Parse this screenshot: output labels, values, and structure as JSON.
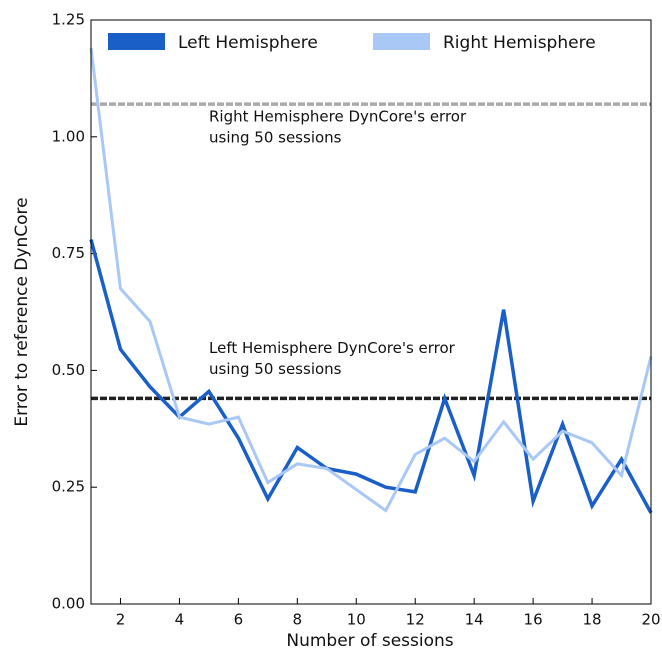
{
  "chart_data": {
    "type": "line",
    "xlabel": "Number of sessions",
    "ylabel": "Error to reference DynCore",
    "x": [
      1,
      2,
      3,
      4,
      5,
      6,
      7,
      8,
      9,
      10,
      11,
      12,
      13,
      14,
      15,
      16,
      17,
      18,
      19,
      20
    ],
    "series": [
      {
        "name": "Left Hemisphere",
        "color": "#1a5fc8",
        "values": [
          0.78,
          0.545,
          0.465,
          0.4,
          0.455,
          0.355,
          0.225,
          0.335,
          0.29,
          0.278,
          0.25,
          0.24,
          0.44,
          0.275,
          0.63,
          0.22,
          0.385,
          0.21,
          0.31,
          0.195
        ]
      },
      {
        "name": "Right Hemisphere",
        "color": "#a9c8f5",
        "values": [
          1.19,
          0.675,
          0.605,
          0.4,
          0.385,
          0.4,
          0.26,
          0.3,
          0.29,
          0.245,
          0.2,
          0.32,
          0.355,
          0.305,
          0.39,
          0.31,
          0.37,
          0.345,
          0.275,
          0.53
        ]
      }
    ],
    "reference_lines": [
      {
        "value": 1.07,
        "color": "#aaaaaa",
        "lines": [
          "Right Hemisphere DynCore's error",
          "using 50 sessions"
        ]
      },
      {
        "value": 0.44,
        "color": "#222222",
        "lines": [
          "Left Hemisphere DynCore's error",
          "using 50 sessions"
        ]
      }
    ],
    "xlim": [
      1,
      20
    ],
    "xticks": [
      2,
      4,
      6,
      8,
      10,
      12,
      14,
      16,
      18,
      20
    ],
    "ylim": [
      0,
      1.25
    ],
    "yticks": [
      {
        "value": 0,
        "label": "0.00"
      },
      {
        "value": 0.25,
        "label": "0.25"
      },
      {
        "value": 0.5,
        "label": "0.50"
      },
      {
        "value": 0.75,
        "label": "0.75"
      },
      {
        "value": 1,
        "label": "1.00"
      },
      {
        "value": 1.25,
        "label": "1.25"
      }
    ],
    "legend": "upper left"
  }
}
